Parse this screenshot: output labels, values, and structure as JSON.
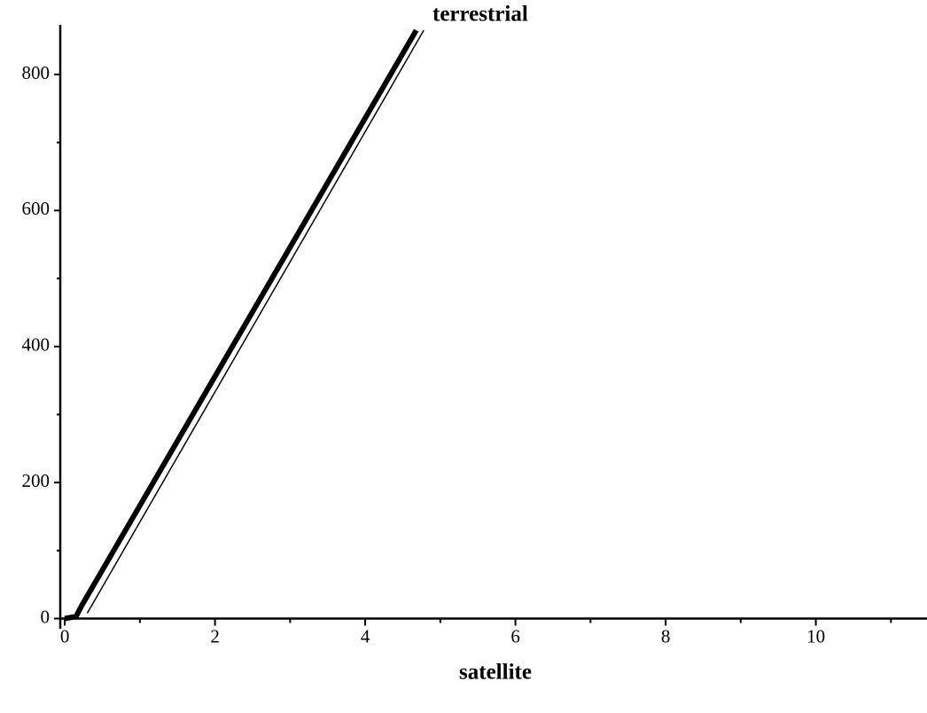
{
  "chart_data": {
    "type": "line",
    "annotation": "terrestrial",
    "xlabel": "satellite",
    "series": [
      {
        "name": "terrestrial",
        "color": "#000",
        "width": 6,
        "x": [
          0,
          0.15,
          0.22,
          4.68
        ],
        "values": [
          0,
          3,
          18,
          865
        ]
      },
      {
        "color": "#000",
        "width": 1.5,
        "x": [
          0.3,
          4.78
        ],
        "values": [
          8,
          865
        ]
      }
    ],
    "xlim": [
      -0.06,
      11.48
    ],
    "ylim": [
      -15,
      873
    ],
    "xticks": [
      0,
      2,
      4,
      6,
      8,
      10
    ],
    "yticks": [
      0,
      200,
      400,
      600,
      800
    ],
    "xminorticks": [
      1,
      3,
      5,
      7,
      9,
      11
    ],
    "yminorticks": [
      100,
      300,
      500,
      700
    ],
    "grid": false
  }
}
